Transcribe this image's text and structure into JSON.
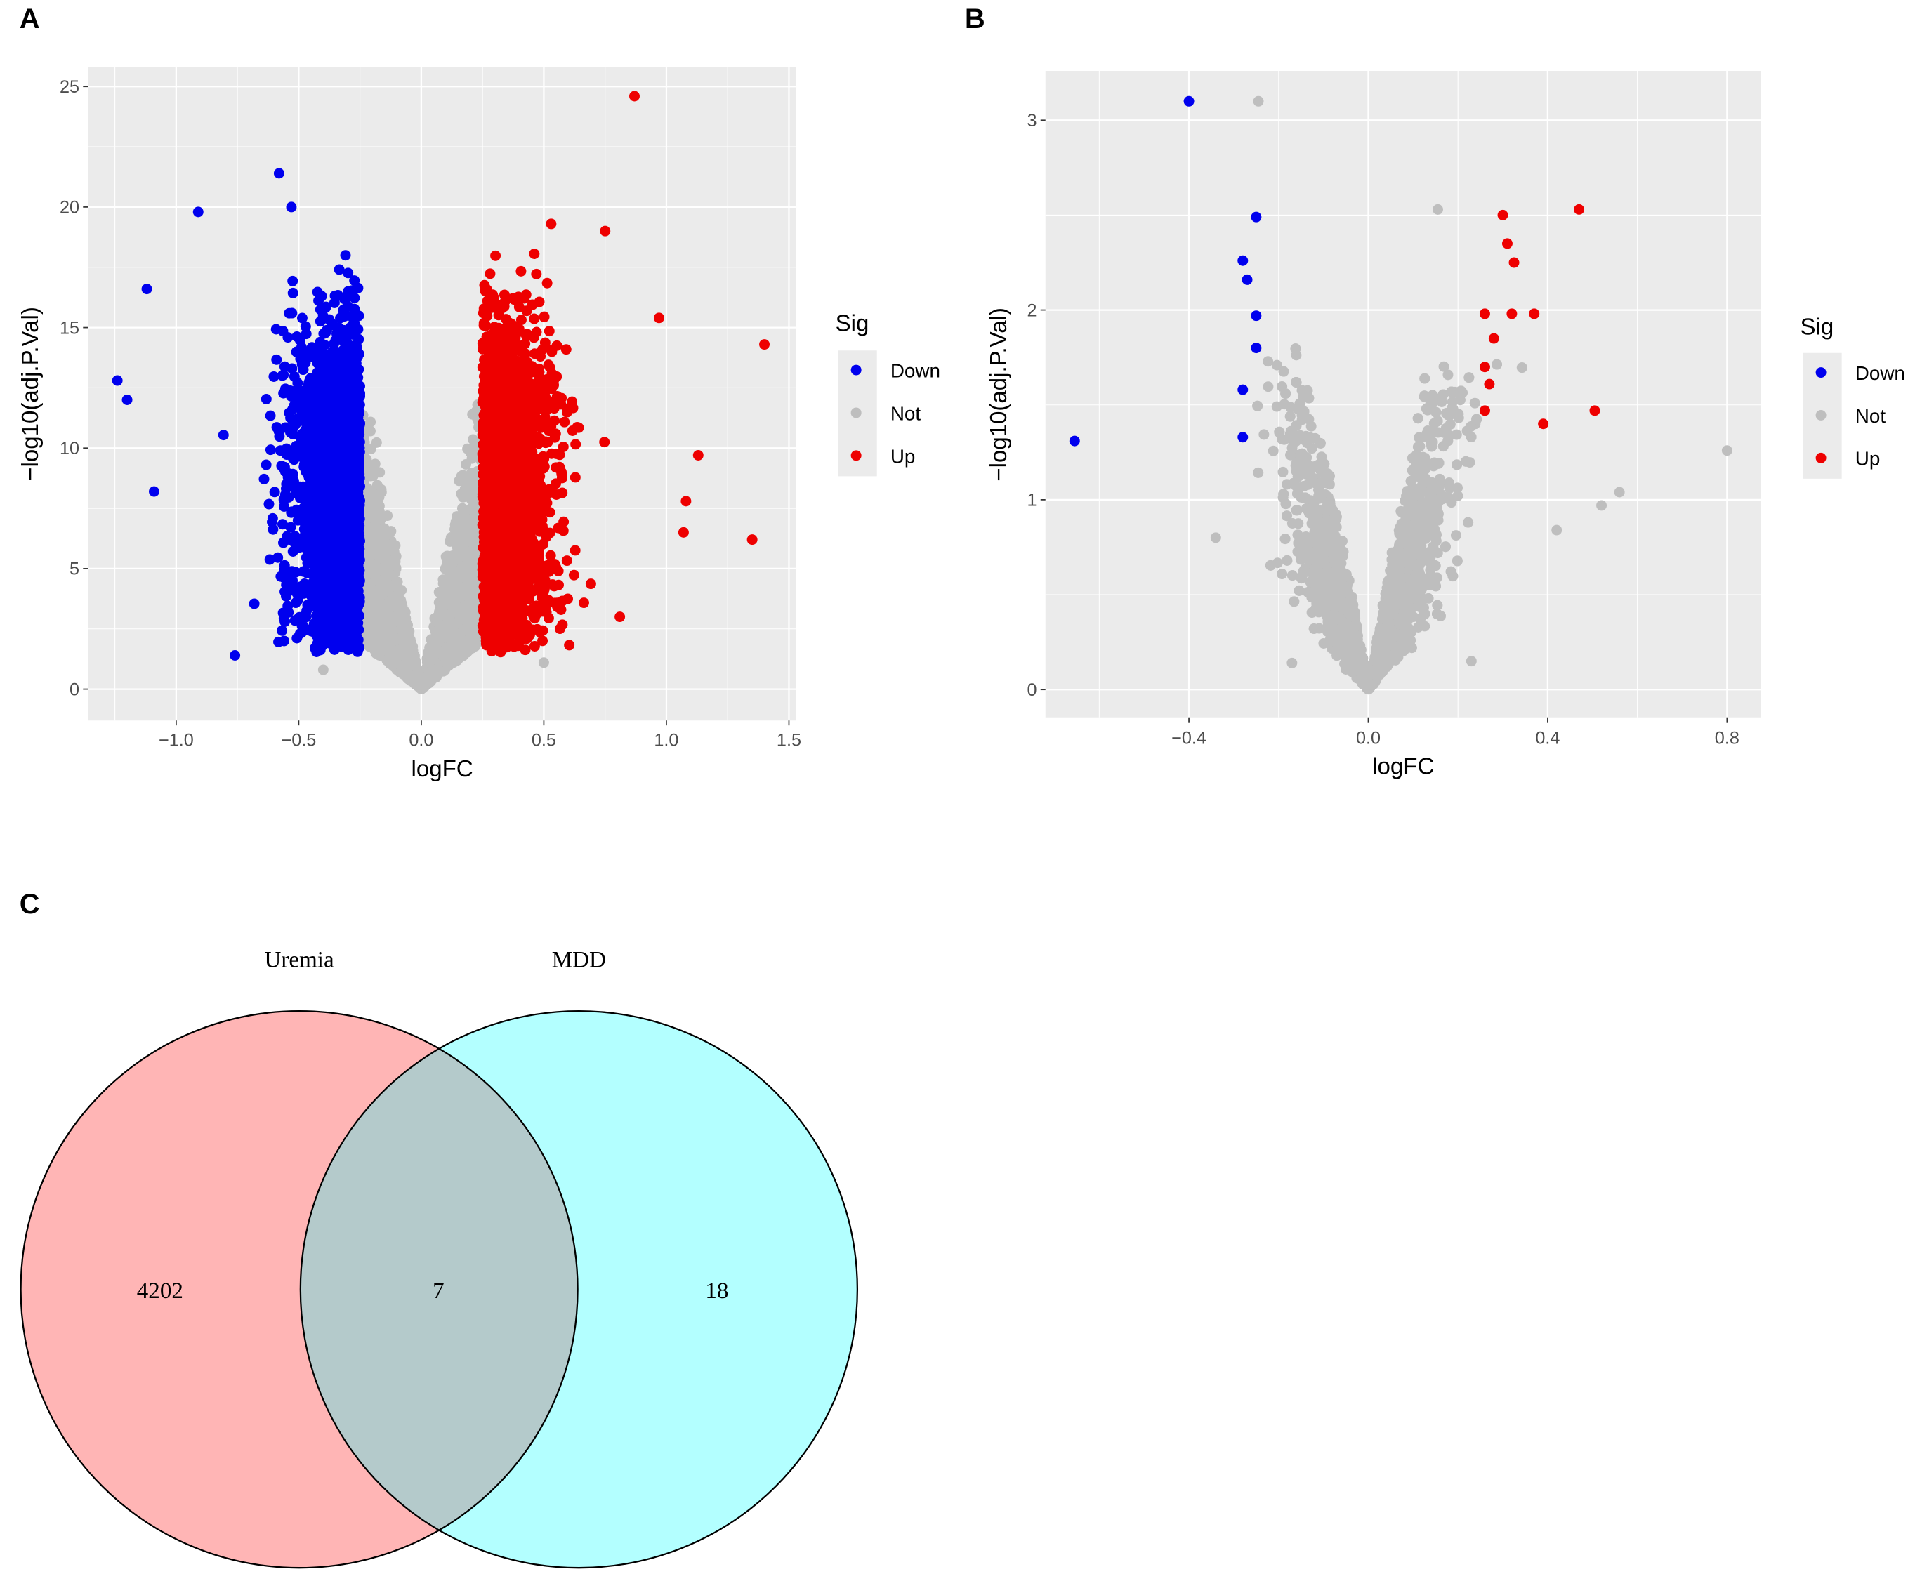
{
  "panels": {
    "a": "A",
    "b": "B",
    "c": "C"
  },
  "chart_data": [
    {
      "type": "scatter",
      "panel": "A",
      "title": "",
      "xlabel": "logFC",
      "ylabel": "-log10(adj.P.Val)",
      "xlim": [
        -1.36,
        1.53
      ],
      "ylim": [
        -1.3,
        25.8
      ],
      "xticks": [
        -1.0,
        -0.5,
        0.0,
        0.5,
        1.0,
        1.5
      ],
      "xtick_labels": [
        "−1.0",
        "−0.5",
        "0.0",
        "0.5",
        "1.0",
        "1.5"
      ],
      "yticks": [
        0,
        5,
        10,
        15,
        20,
        25
      ],
      "ytick_labels": [
        "0",
        "5",
        "10",
        "15",
        "20",
        "25"
      ],
      "grid": true,
      "legend": {
        "title": "Sig",
        "placement": "right",
        "entries": [
          "Down",
          "Not",
          "Up"
        ]
      },
      "colors": {
        "Down": "#0000EE",
        "Not": "#BEBEBE",
        "Up": "#EE0000"
      },
      "logFC_cutoff": 0.25,
      "cloud": {
        "Down": {
          "x": [
            -0.75,
            -0.25
          ],
          "y": [
            1.5,
            16
          ]
        },
        "Up": {
          "x": [
            0.25,
            0.75
          ],
          "y": [
            1.5,
            16
          ]
        }
      },
      "notable_points": [
        {
          "x": 0.87,
          "y": 24.6,
          "sig": "Up"
        },
        {
          "x": 1.4,
          "y": 14.3,
          "sig": "Up"
        },
        {
          "x": 1.35,
          "y": 6.2,
          "sig": "Up"
        },
        {
          "x": 1.13,
          "y": 9.7,
          "sig": "Up"
        },
        {
          "x": 0.97,
          "y": 15.4,
          "sig": "Up"
        },
        {
          "x": 1.07,
          "y": 6.5,
          "sig": "Up"
        },
        {
          "x": 1.08,
          "y": 7.8,
          "sig": "Up"
        },
        {
          "x": 0.81,
          "y": 3.0,
          "sig": "Up"
        },
        {
          "x": 0.75,
          "y": 19.0,
          "sig": "Up"
        },
        {
          "x": 0.53,
          "y": 19.3,
          "sig": "Up"
        },
        {
          "x": -0.58,
          "y": 21.4,
          "sig": "Down"
        },
        {
          "x": -0.53,
          "y": 20.0,
          "sig": "Down"
        },
        {
          "x": -0.91,
          "y": 19.8,
          "sig": "Down"
        },
        {
          "x": -0.76,
          "y": 1.4,
          "sig": "Down"
        },
        {
          "x": -1.24,
          "y": 12.8,
          "sig": "Down"
        },
        {
          "x": -1.12,
          "y": 16.6,
          "sig": "Down"
        },
        {
          "x": -1.2,
          "y": 12.0,
          "sig": "Down"
        },
        {
          "x": -1.09,
          "y": 8.2,
          "sig": "Down"
        },
        {
          "x": -0.56,
          "y": 2.0,
          "sig": "Down"
        },
        {
          "x": 0.5,
          "y": 1.1,
          "sig": "Not"
        },
        {
          "x": -0.4,
          "y": 0.8,
          "sig": "Not"
        }
      ]
    },
    {
      "type": "scatter",
      "panel": "B",
      "title": "",
      "xlabel": "logFC",
      "ylabel": "-log10(adj.P.Val)",
      "xlim": [
        -0.72,
        0.876
      ],
      "ylim": [
        -0.15,
        3.26
      ],
      "xticks": [
        -0.4,
        0.0,
        0.4,
        0.8
      ],
      "xtick_labels": [
        "−0.4",
        "0.0",
        "0.4",
        "0.8"
      ],
      "yticks": [
        0,
        1,
        2,
        3
      ],
      "ytick_labels": [
        "0",
        "1",
        "2",
        "3"
      ],
      "grid": true,
      "legend": {
        "title": "Sig",
        "placement": "right",
        "entries": [
          "Down",
          "Not",
          "Up"
        ]
      },
      "colors": {
        "Down": "#0000EE",
        "Not": "#BEBEBE",
        "Up": "#EE0000"
      },
      "notable_points": [
        {
          "x": -0.4,
          "y": 3.1,
          "sig": "Down"
        },
        {
          "x": -0.655,
          "y": 1.31,
          "sig": "Down"
        },
        {
          "x": -0.25,
          "y": 2.49,
          "sig": "Down"
        },
        {
          "x": -0.28,
          "y": 2.26,
          "sig": "Down"
        },
        {
          "x": -0.27,
          "y": 2.16,
          "sig": "Down"
        },
        {
          "x": -0.25,
          "y": 1.97,
          "sig": "Down"
        },
        {
          "x": -0.25,
          "y": 1.8,
          "sig": "Down"
        },
        {
          "x": -0.28,
          "y": 1.58,
          "sig": "Down"
        },
        {
          "x": -0.28,
          "y": 1.33,
          "sig": "Down"
        },
        {
          "x": 0.47,
          "y": 2.53,
          "sig": "Up"
        },
        {
          "x": 0.3,
          "y": 2.5,
          "sig": "Up"
        },
        {
          "x": 0.31,
          "y": 2.35,
          "sig": "Up"
        },
        {
          "x": 0.325,
          "y": 2.25,
          "sig": "Up"
        },
        {
          "x": 0.26,
          "y": 1.98,
          "sig": "Up"
        },
        {
          "x": 0.32,
          "y": 1.98,
          "sig": "Up"
        },
        {
          "x": 0.37,
          "y": 1.98,
          "sig": "Up"
        },
        {
          "x": 0.28,
          "y": 1.85,
          "sig": "Up"
        },
        {
          "x": 0.26,
          "y": 1.7,
          "sig": "Up"
        },
        {
          "x": 0.27,
          "y": 1.61,
          "sig": "Up"
        },
        {
          "x": 0.26,
          "y": 1.47,
          "sig": "Up"
        },
        {
          "x": 0.505,
          "y": 1.47,
          "sig": "Up"
        },
        {
          "x": 0.39,
          "y": 1.4,
          "sig": "Up"
        },
        {
          "x": -0.245,
          "y": 3.1,
          "sig": "Not"
        },
        {
          "x": 0.155,
          "y": 2.53,
          "sig": "Not"
        },
        {
          "x": 0.8,
          "y": 1.26,
          "sig": "Not"
        },
        {
          "x": 0.56,
          "y": 1.04,
          "sig": "Not"
        },
        {
          "x": 0.52,
          "y": 0.97,
          "sig": "Not"
        },
        {
          "x": 0.42,
          "y": 0.84,
          "sig": "Not"
        },
        {
          "x": -0.34,
          "y": 0.8,
          "sig": "Not"
        },
        {
          "x": 0.23,
          "y": 0.15,
          "sig": "Not"
        },
        {
          "x": -0.17,
          "y": 0.14,
          "sig": "Not"
        }
      ]
    },
    {
      "type": "venn",
      "panel": "C",
      "sets": [
        "Uremia",
        "MDD"
      ],
      "counts": {
        "Uremia_only": "4202",
        "both": "7",
        "MDD_only": "18"
      },
      "colors": {
        "Uremia": "#FFB5B5",
        "MDD": "#B3FFFF",
        "overlap": "#B4CACB"
      }
    }
  ]
}
